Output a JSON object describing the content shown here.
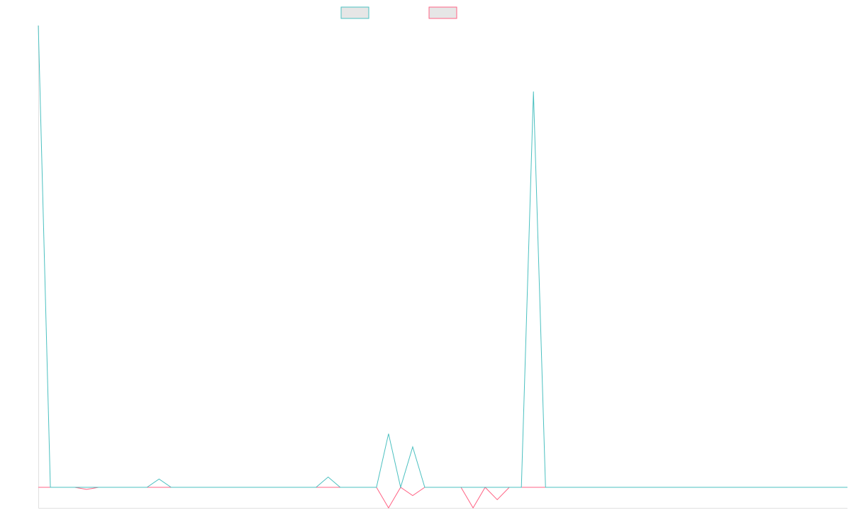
{
  "chart_data": {
    "type": "line",
    "title": "",
    "xlabel": "",
    "ylabel": "",
    "grid": false,
    "legend_position": "top-center",
    "x_count": 68,
    "y_domain": [
      -0.5,
      11.5
    ],
    "series": [
      {
        "color": "#4bc0c0",
        "fill": "#e6e6e6",
        "values": [
          11.2,
          0,
          0,
          0,
          0,
          0,
          0,
          0,
          0,
          0,
          0.2,
          0,
          0,
          0,
          0,
          0,
          0,
          0,
          0,
          0,
          0,
          0,
          0,
          0,
          0.25,
          0,
          0,
          0,
          0,
          1.3,
          0,
          0.98,
          0,
          0,
          0,
          0,
          0,
          0,
          0,
          0,
          0,
          9.6,
          0,
          0,
          0,
          0,
          0,
          0,
          0,
          0,
          0,
          0,
          0,
          0,
          0,
          0,
          0,
          0,
          0,
          0,
          0,
          0,
          0,
          0,
          0,
          0,
          0,
          0
        ]
      },
      {
        "color": "#ff6384",
        "fill": "#e6e6e6",
        "values": [
          0,
          0,
          0,
          0,
          -0.05,
          0,
          0,
          0,
          0,
          0,
          0,
          0,
          0,
          0,
          0,
          0,
          0,
          0,
          0,
          0,
          0,
          0,
          0,
          0,
          0,
          0,
          0,
          0,
          0,
          -0.5,
          0,
          -0.2,
          0,
          0,
          0,
          0,
          -0.5,
          0,
          -0.3,
          0,
          0,
          0,
          0,
          0,
          0,
          0,
          0,
          0,
          0,
          0,
          0,
          0,
          0,
          0,
          0,
          0,
          0,
          0,
          0,
          0,
          0,
          0,
          0,
          0,
          0,
          0,
          0,
          0
        ]
      }
    ]
  }
}
